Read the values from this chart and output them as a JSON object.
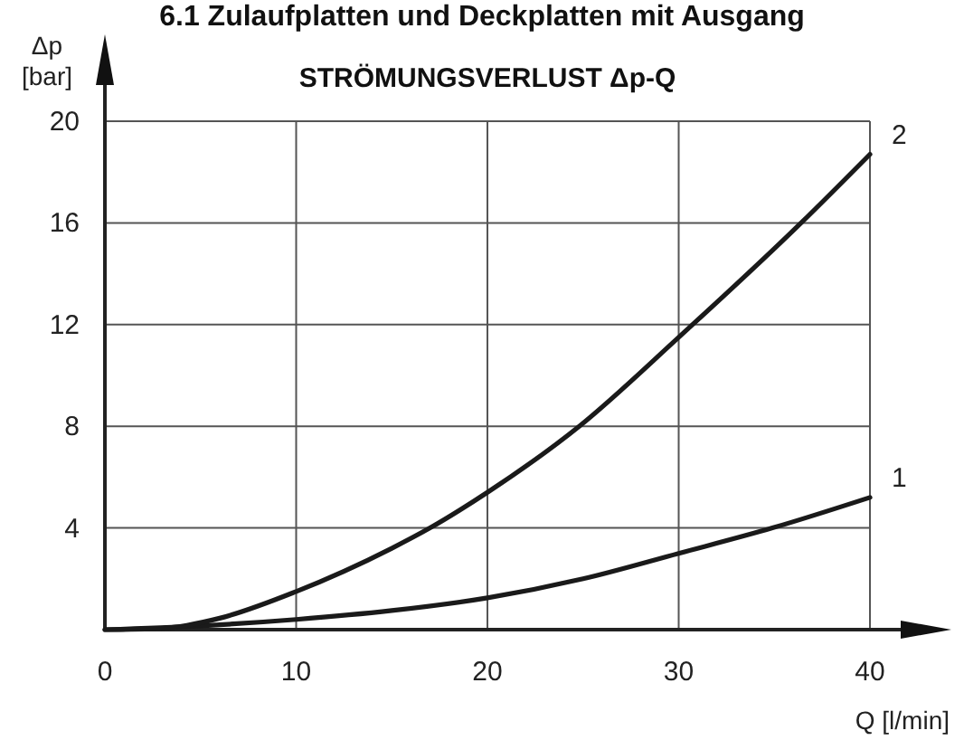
{
  "chart_data": {
    "type": "line",
    "title": "STRÖMUNGSVERLUST Δp-Q",
    "annotations": [
      "6.1  Zulaufplatten und Deckplatten mit Ausgang"
    ],
    "xlabel": "Q [l/min]",
    "ylabel": "Δp [bar]",
    "xlim": [
      0,
      40
    ],
    "xticks": [
      0,
      10,
      20,
      30,
      40
    ],
    "ylim": [
      0,
      20
    ],
    "yticks": [
      {
        "value": 0,
        "label": null
      },
      4,
      8,
      12,
      16,
      20
    ],
    "grid": true,
    "legend": false,
    "line_style": "solid",
    "series": [
      {
        "name": "1",
        "color": "#1a1a1a",
        "x": [
          0,
          5,
          10,
          15,
          20,
          25,
          30,
          34.9,
          40
        ],
        "values": [
          0,
          0.15,
          0.4,
          0.75,
          1.25,
          2,
          3,
          4,
          5.2
        ]
      },
      {
        "name": "2",
        "color": "#1a1a1a",
        "x": [
          0,
          3,
          6,
          10,
          15,
          17,
          20,
          24.8,
          30,
          36.4,
          40
        ],
        "values": [
          0,
          0.05,
          0.45,
          1.5,
          3.2,
          4,
          5.4,
          8,
          11.5,
          16,
          18.7
        ]
      }
    ]
  }
}
